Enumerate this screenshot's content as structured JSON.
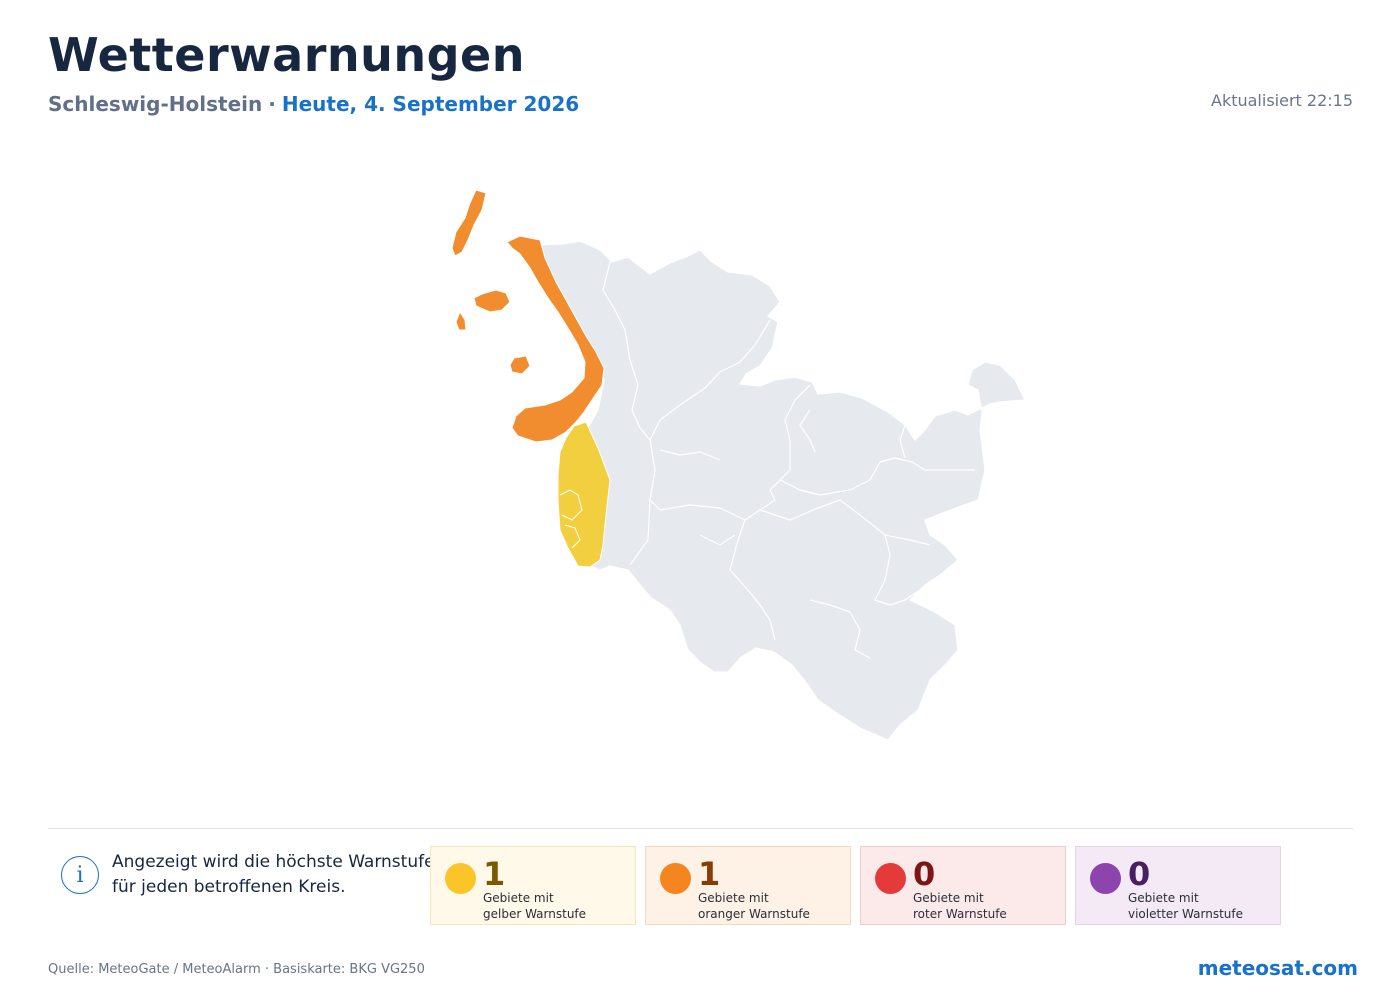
{
  "header": {
    "title": "Wetterwarnungen",
    "region": "Schleswig-Holstein",
    "separator": "·",
    "date": "Heute, 4. September 2026",
    "updated": "Aktualisiert 22:15"
  },
  "map": {
    "colors": {
      "land": "#e6e9ed",
      "border": "#ffffff",
      "yellow": "#f2cf3f",
      "orange": "#f18d2f"
    },
    "warned_areas": [
      {
        "level": "orange"
      },
      {
        "level": "yellow"
      }
    ]
  },
  "info": {
    "icon": "info-icon",
    "line1": "Angezeigt wird die höchste Warnstufe",
    "line2": "für jeden betroffenen Kreis."
  },
  "legend": [
    {
      "count": "1",
      "label": "Gebiete mit\ngelber Warnstufe",
      "dot_color": "#fbc52a",
      "count_color": "#7a5a00"
    },
    {
      "count": "1",
      "label": "Gebiete mit\noranger Warnstufe",
      "dot_color": "#f5861f",
      "count_color": "#8a3b05"
    },
    {
      "count": "0",
      "label": "Gebiete mit\nroter Warnstufe",
      "dot_color": "#e53a3a",
      "count_color": "#7d1616"
    },
    {
      "count": "0",
      "label": "Gebiete mit\nvioletter Warnstufe",
      "dot_color": "#8e44ad",
      "count_color": "#4b1e61"
    }
  ],
  "footer": {
    "source": "Quelle: MeteoGate / MeteoAlarm · Basiskarte: BKG VG250",
    "brand": "meteosat.com"
  }
}
